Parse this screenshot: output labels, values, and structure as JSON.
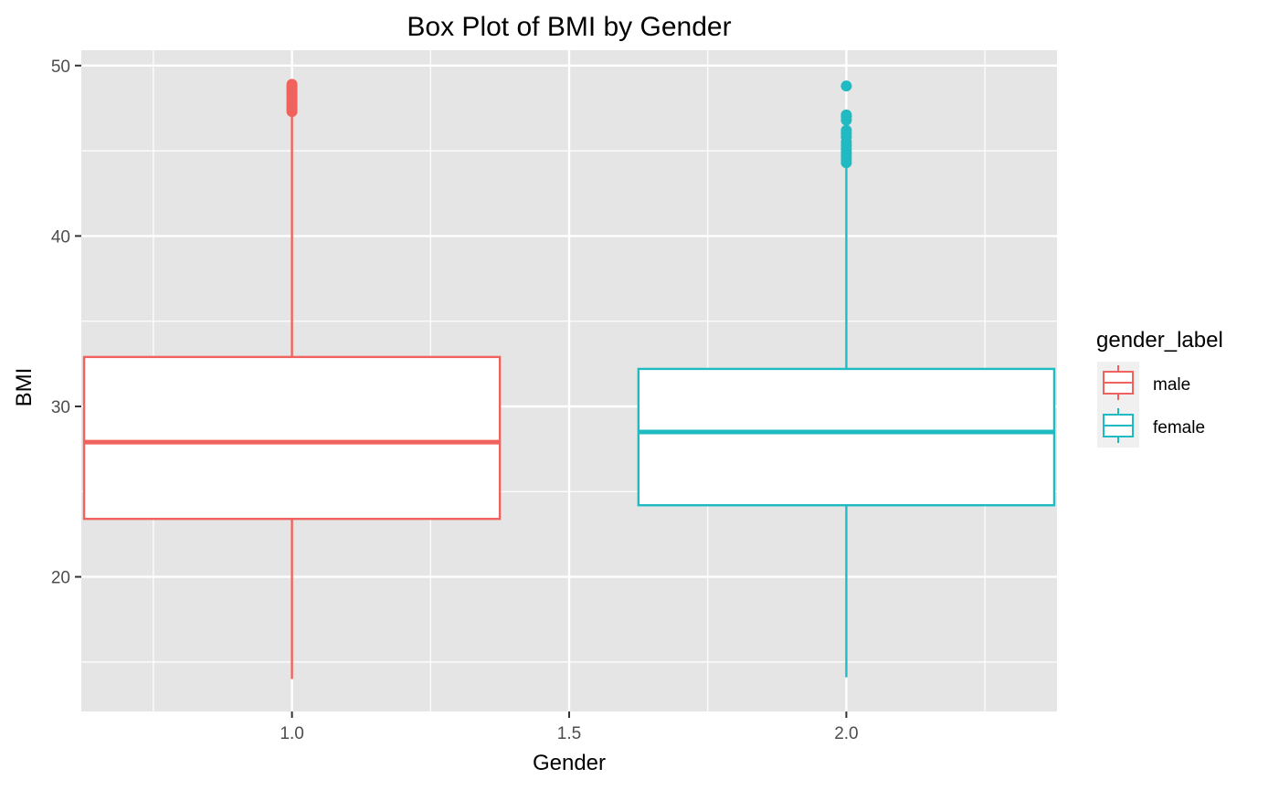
{
  "chart_data": {
    "type": "boxplot",
    "title": "Box Plot of BMI by Gender",
    "xlabel": "Gender",
    "ylabel": "BMI",
    "xlim": [
      0.62,
      2.38
    ],
    "ylim": [
      12.1,
      50.9
    ],
    "x_ticks": [
      {
        "value": 1.0,
        "label": "1.0"
      },
      {
        "value": 1.5,
        "label": "1.5"
      },
      {
        "value": 2.0,
        "label": "2.0"
      }
    ],
    "y_ticks": [
      {
        "value": 20,
        "label": "20"
      },
      {
        "value": 30,
        "label": "30"
      },
      {
        "value": 40,
        "label": "40"
      },
      {
        "value": 50,
        "label": "50"
      }
    ],
    "grid": true,
    "panel_background": "#e5e5e5",
    "legend": {
      "title": "gender_label",
      "position": "right",
      "entries": [
        {
          "label": "male",
          "color": "#f0625d"
        },
        {
          "label": "female",
          "color": "#1fbac2"
        }
      ]
    },
    "series": [
      {
        "name": "male",
        "x": 1.0,
        "box_width": 0.75,
        "color": "#f0625d",
        "whisker_low": 14.0,
        "q1": 23.4,
        "median": 27.9,
        "q3": 32.9,
        "whisker_high": 47.0,
        "outliers": [
          47.3,
          47.4,
          47.5,
          47.6,
          47.7,
          47.8,
          47.9,
          48.0,
          48.1,
          48.2,
          48.3,
          48.4,
          48.5,
          48.6,
          48.7,
          48.8,
          48.9
        ]
      },
      {
        "name": "female",
        "x": 2.0,
        "box_width": 0.75,
        "color": "#1fbac2",
        "whisker_low": 14.1,
        "q1": 24.2,
        "median": 28.5,
        "q3": 32.2,
        "whisker_high": 44.0,
        "outliers": [
          44.3,
          44.5,
          44.7,
          44.9,
          45.1,
          45.3,
          45.5,
          45.8,
          46.0,
          46.2,
          46.8,
          47.0,
          47.1,
          48.8
        ]
      }
    ]
  }
}
